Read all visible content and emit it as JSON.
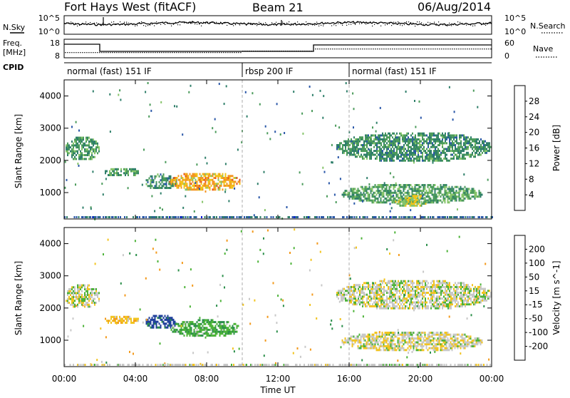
{
  "header": {
    "station": "Fort Hays West (fitACF)",
    "beam": "Beam 21",
    "date": "06/Aug/2014"
  },
  "side_labels": {
    "nsky": "N.Sky",
    "nsearch": "N.Search",
    "freq": "Freq.",
    "mhz": "[MHz]",
    "nave": "Nave",
    "cpid": "CPID"
  },
  "noise_axis": {
    "left": [
      "10^5",
      "10^0"
    ],
    "right": [
      "10^5",
      "10^0"
    ]
  },
  "freq_axis": {
    "left": [
      "18",
      "8"
    ],
    "right": [
      "60",
      "0"
    ]
  },
  "cpid": [
    {
      "label": "normal (fast) 151 IF",
      "start": 0,
      "end": 10
    },
    {
      "label": "rbsp 200 IF",
      "start": 10,
      "end": 16
    },
    {
      "label": "normal (fast) 151 IF",
      "start": 16,
      "end": 24
    }
  ],
  "time_axis": {
    "label": "Time UT",
    "ticks": [
      "00:00",
      "04:00",
      "08:00",
      "12:00",
      "16:00",
      "20:00",
      "00:00"
    ]
  },
  "colors": {
    "power": [
      "#0a1ad8",
      "#2a57a8",
      "#2f7f6a",
      "#4b9b5b",
      "#86c46a",
      "#f2c318",
      "#f39521",
      "#e8541c",
      "#dc1616"
    ],
    "velocity": [
      "#e60f0f",
      "#ee5a12",
      "#f39a1c",
      "#f2c420",
      "#c8c8c8",
      "#4cb338",
      "#2b8f4a",
      "#20409c",
      "#1a2bb8"
    ]
  },
  "chart_data": [
    {
      "type": "heatmap",
      "name": "Power",
      "ylabel": "Slant Range [km]",
      "xlabel": "",
      "ylim": [
        180,
        4500
      ],
      "xlim": [
        0,
        24
      ],
      "y_ticks": [
        1000,
        2000,
        3000,
        4000
      ],
      "colorbar": {
        "label": "Power [dB]",
        "ticks": [
          "4",
          "8",
          "12",
          "16",
          "20",
          "24",
          "28"
        ],
        "range": [
          0,
          30
        ]
      },
      "features": [
        {
          "t0": 0.0,
          "t1": 2.0,
          "r0": 1950,
          "r1": 2700,
          "level": 11
        },
        {
          "t0": 2.2,
          "t1": 4.2,
          "r0": 1450,
          "r1": 1750,
          "level": 12
        },
        {
          "t0": 4.5,
          "t1": 6.3,
          "r0": 1050,
          "r1": 1550,
          "level": 10
        },
        {
          "t0": 5.9,
          "t1": 9.9,
          "r0": 1000,
          "r1": 1600,
          "level": 20
        },
        {
          "t0": 15.2,
          "t1": 24.0,
          "r0": 1900,
          "r1": 2850,
          "level": 10
        },
        {
          "t0": 15.5,
          "t1": 23.5,
          "r0": 600,
          "r1": 1250,
          "level": 12
        },
        {
          "t0": 18.5,
          "t1": 20.5,
          "r0": 500,
          "r1": 900,
          "level": 16
        }
      ]
    },
    {
      "type": "heatmap",
      "name": "Velocity",
      "ylabel": "Slant Range [km]",
      "xlabel": "Time UT",
      "ylim": [
        180,
        4500
      ],
      "xlim": [
        0,
        24
      ],
      "y_ticks": [
        1000,
        2000,
        3000,
        4000
      ],
      "colorbar": {
        "label": "Velocity [m s^-1]",
        "ticks": [
          "200",
          "100",
          "50",
          "15",
          "-15",
          "-50",
          "-100",
          "-200"
        ],
        "range": [
          -250,
          250
        ]
      },
      "features": [
        {
          "t0": 0.0,
          "t1": 2.0,
          "r0": 1950,
          "r1": 2700,
          "level": 0
        },
        {
          "t0": 2.2,
          "t1": 4.2,
          "r0": 1450,
          "r1": 1750,
          "level": -40
        },
        {
          "t0": 4.5,
          "t1": 6.3,
          "r0": 1300,
          "r1": 1750,
          "level": 120
        },
        {
          "t0": 5.9,
          "t1": 9.9,
          "r0": 1050,
          "r1": 1600,
          "level": 40
        },
        {
          "t0": 15.2,
          "t1": 24.0,
          "r0": 1900,
          "r1": 2850,
          "level": 0
        },
        {
          "t0": 15.5,
          "t1": 23.5,
          "r0": 600,
          "r1": 1250,
          "level": -5
        }
      ]
    }
  ]
}
